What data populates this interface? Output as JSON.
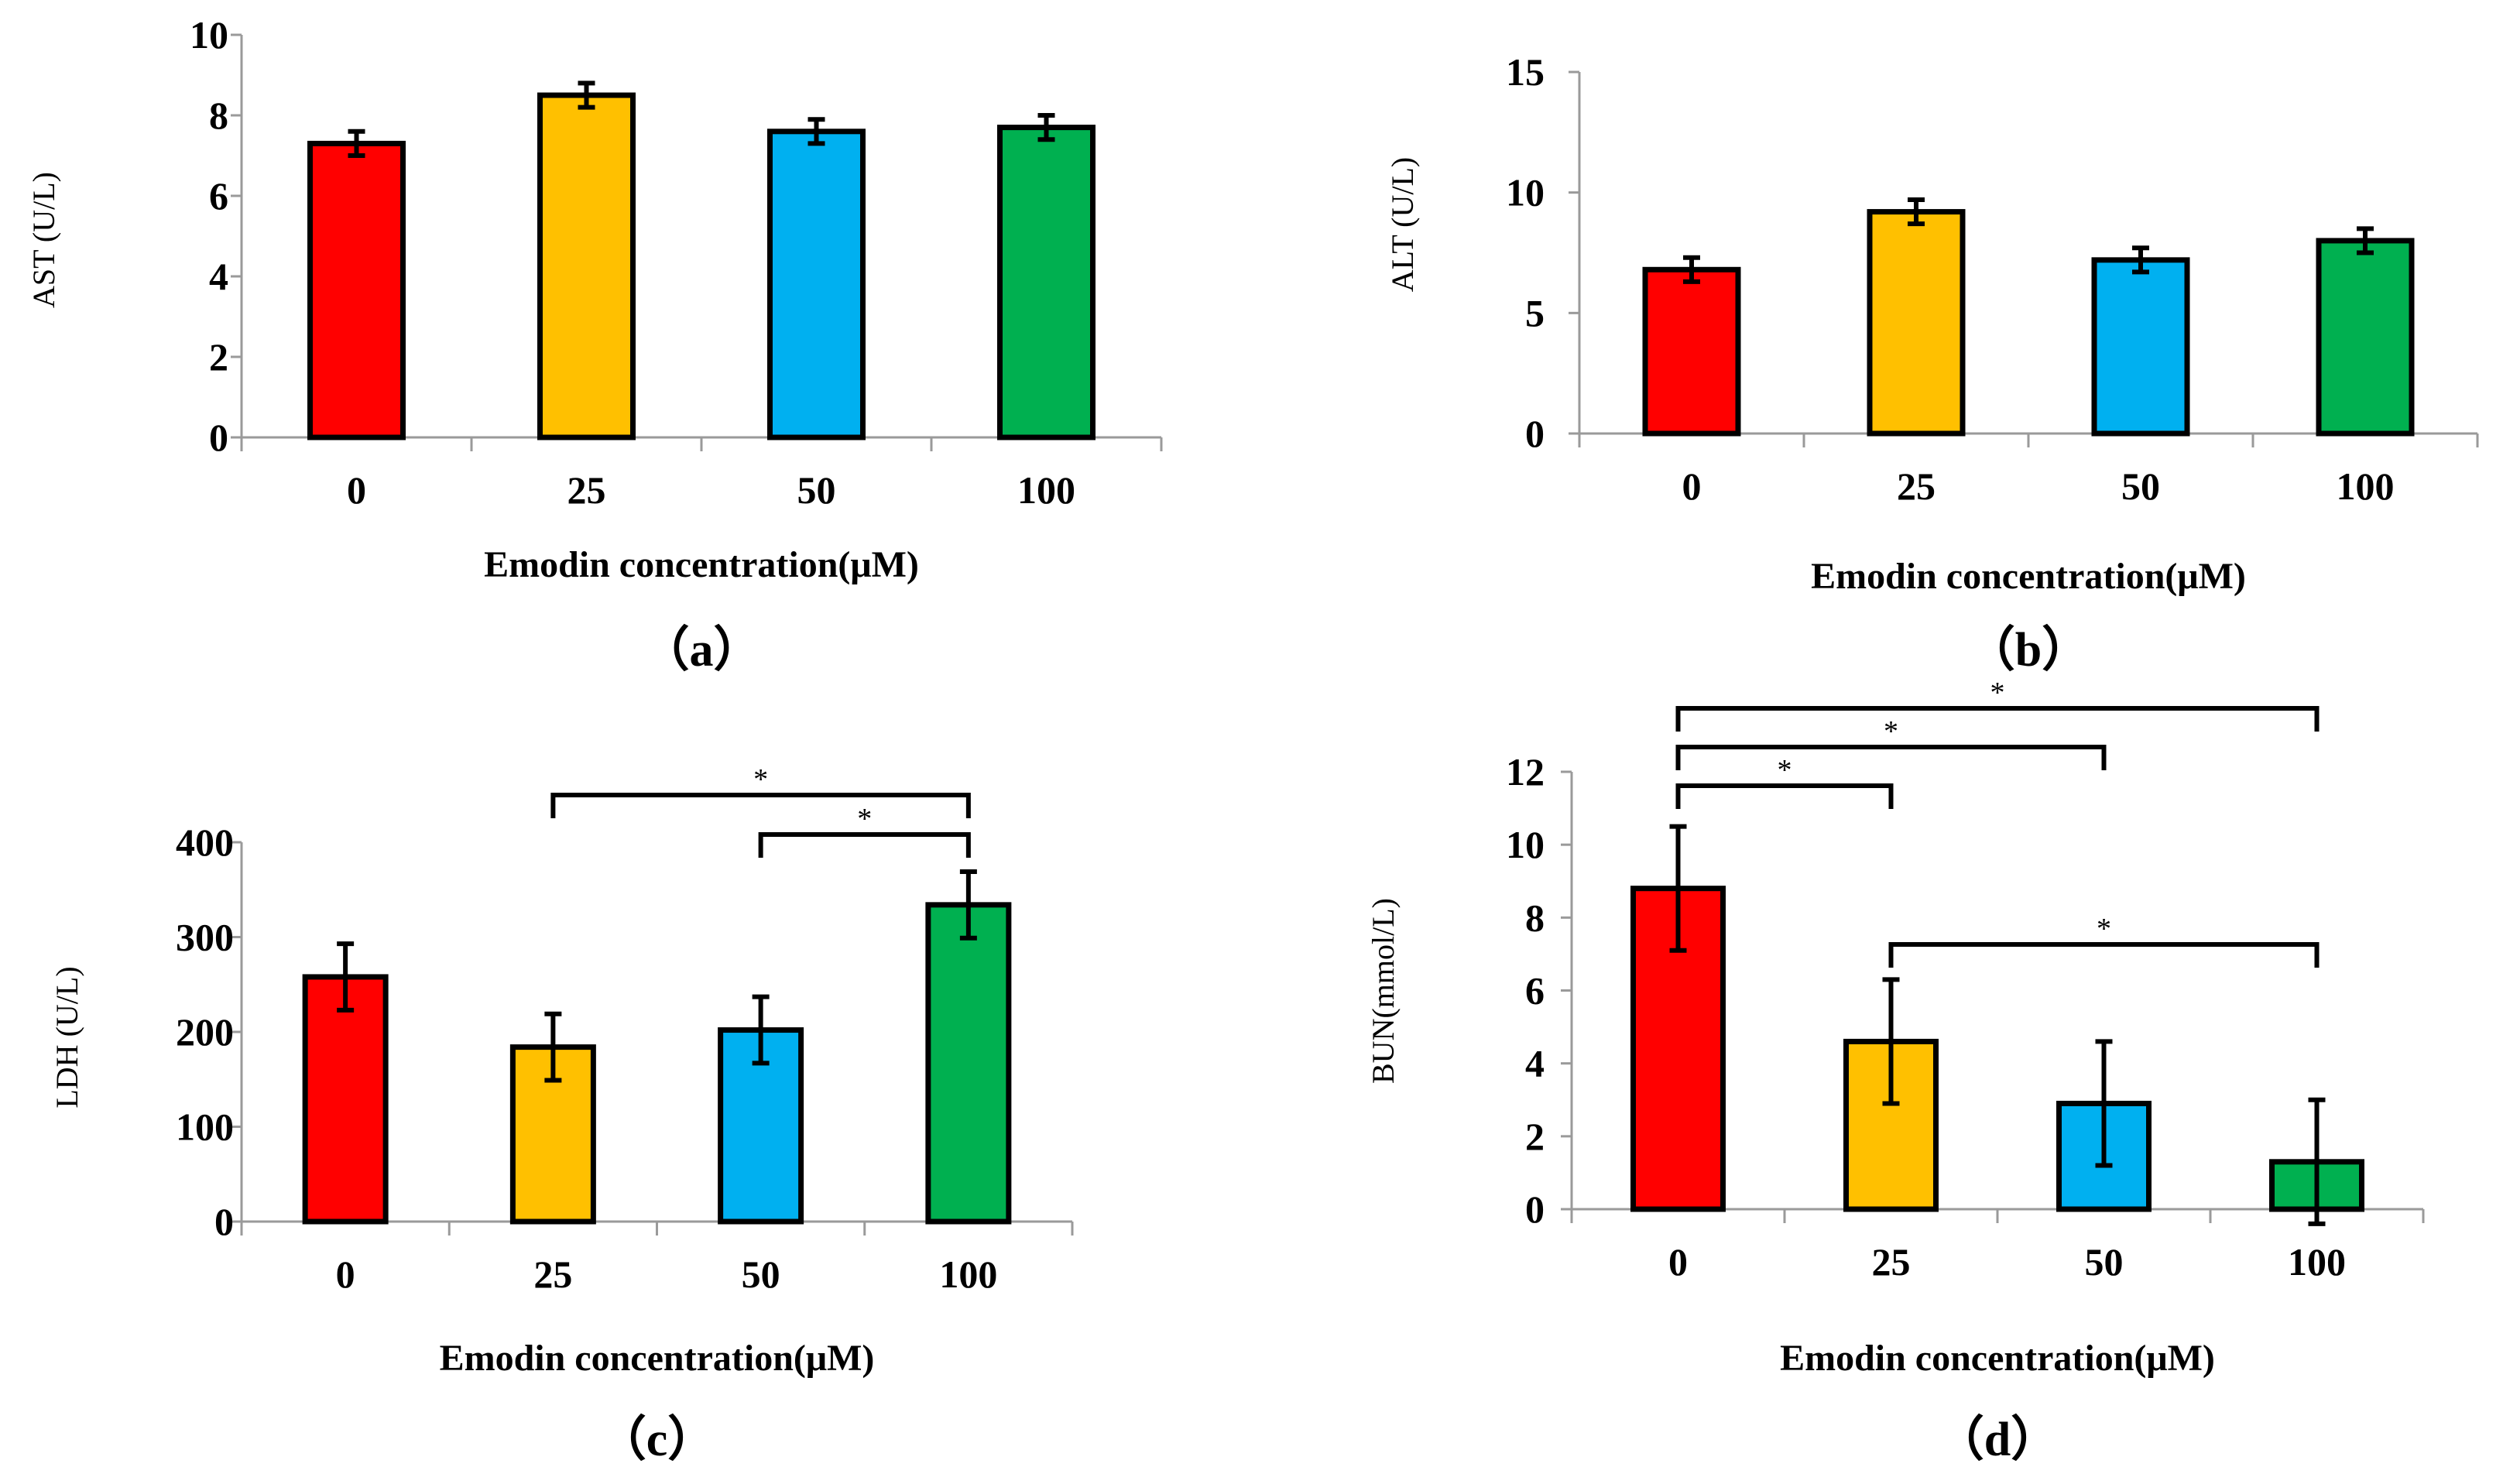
{
  "chart_data": [
    {
      "id": "a",
      "type": "bar",
      "panel_label": "（a）",
      "ylabel": "AST (U/L)",
      "xlabel": "Emodin concentration(μM)",
      "categories": [
        "0",
        "25",
        "50",
        "100"
      ],
      "values": [
        7.3,
        8.5,
        7.6,
        7.7
      ],
      "errors": [
        0.3,
        0.3,
        0.3,
        0.3
      ],
      "ylim": [
        0,
        10
      ],
      "yticks": [
        0,
        2,
        4,
        6,
        8,
        10
      ],
      "bar_colors": [
        "#ff0000",
        "#ffc000",
        "#00b0f0",
        "#00b050"
      ],
      "significance": []
    },
    {
      "id": "b",
      "type": "bar",
      "panel_label": "（b）",
      "ylabel": "ALT (U/L)",
      "xlabel": "Emodin concentration(μM)",
      "categories": [
        "0",
        "25",
        "50",
        "100"
      ],
      "values": [
        6.8,
        9.2,
        7.2,
        8.0
      ],
      "errors": [
        0.5,
        0.5,
        0.5,
        0.5
      ],
      "ylim": [
        0,
        15
      ],
      "yticks": [
        0,
        5,
        10,
        15
      ],
      "bar_colors": [
        "#ff0000",
        "#ffc000",
        "#00b0f0",
        "#00b050"
      ],
      "significance": []
    },
    {
      "id": "c",
      "type": "bar",
      "panel_label": "（c）",
      "ylabel": "LDH  (U/L)",
      "xlabel": "Emodin concentration(μM)",
      "categories": [
        "0",
        "25",
        "50",
        "100"
      ],
      "values": [
        258,
        184,
        202,
        334
      ],
      "errors": [
        35,
        35,
        35,
        35
      ],
      "ylim": [
        0,
        400
      ],
      "yticks": [
        0,
        100,
        200,
        300,
        400
      ],
      "bar_colors": [
        "#ff0000",
        "#ffc000",
        "#00b0f0",
        "#00b050"
      ],
      "significance": [
        {
          "from": 1,
          "to": 3,
          "label": "*"
        },
        {
          "from": 2,
          "to": 3,
          "label": "*"
        }
      ]
    },
    {
      "id": "d",
      "type": "bar",
      "panel_label": "（d）",
      "ylabel": "BUN(mmol/L)",
      "xlabel": "Emodin concentration(μM)",
      "categories": [
        "0",
        "25",
        "50",
        "100"
      ],
      "values": [
        8.8,
        4.6,
        2.9,
        1.3
      ],
      "errors": [
        1.7,
        1.7,
        1.7,
        1.7
      ],
      "ylim": [
        0,
        12
      ],
      "yticks": [
        0,
        2,
        4,
        6,
        8,
        10,
        12
      ],
      "bar_colors": [
        "#ff0000",
        "#ffc000",
        "#00b0f0",
        "#00b050"
      ],
      "significance": [
        {
          "from": 0,
          "to": 3,
          "label": "*"
        },
        {
          "from": 0,
          "to": 2,
          "label": "*"
        },
        {
          "from": 0,
          "to": 1,
          "label": "*"
        },
        {
          "from": 1,
          "to": 3,
          "label": "*"
        }
      ]
    }
  ]
}
